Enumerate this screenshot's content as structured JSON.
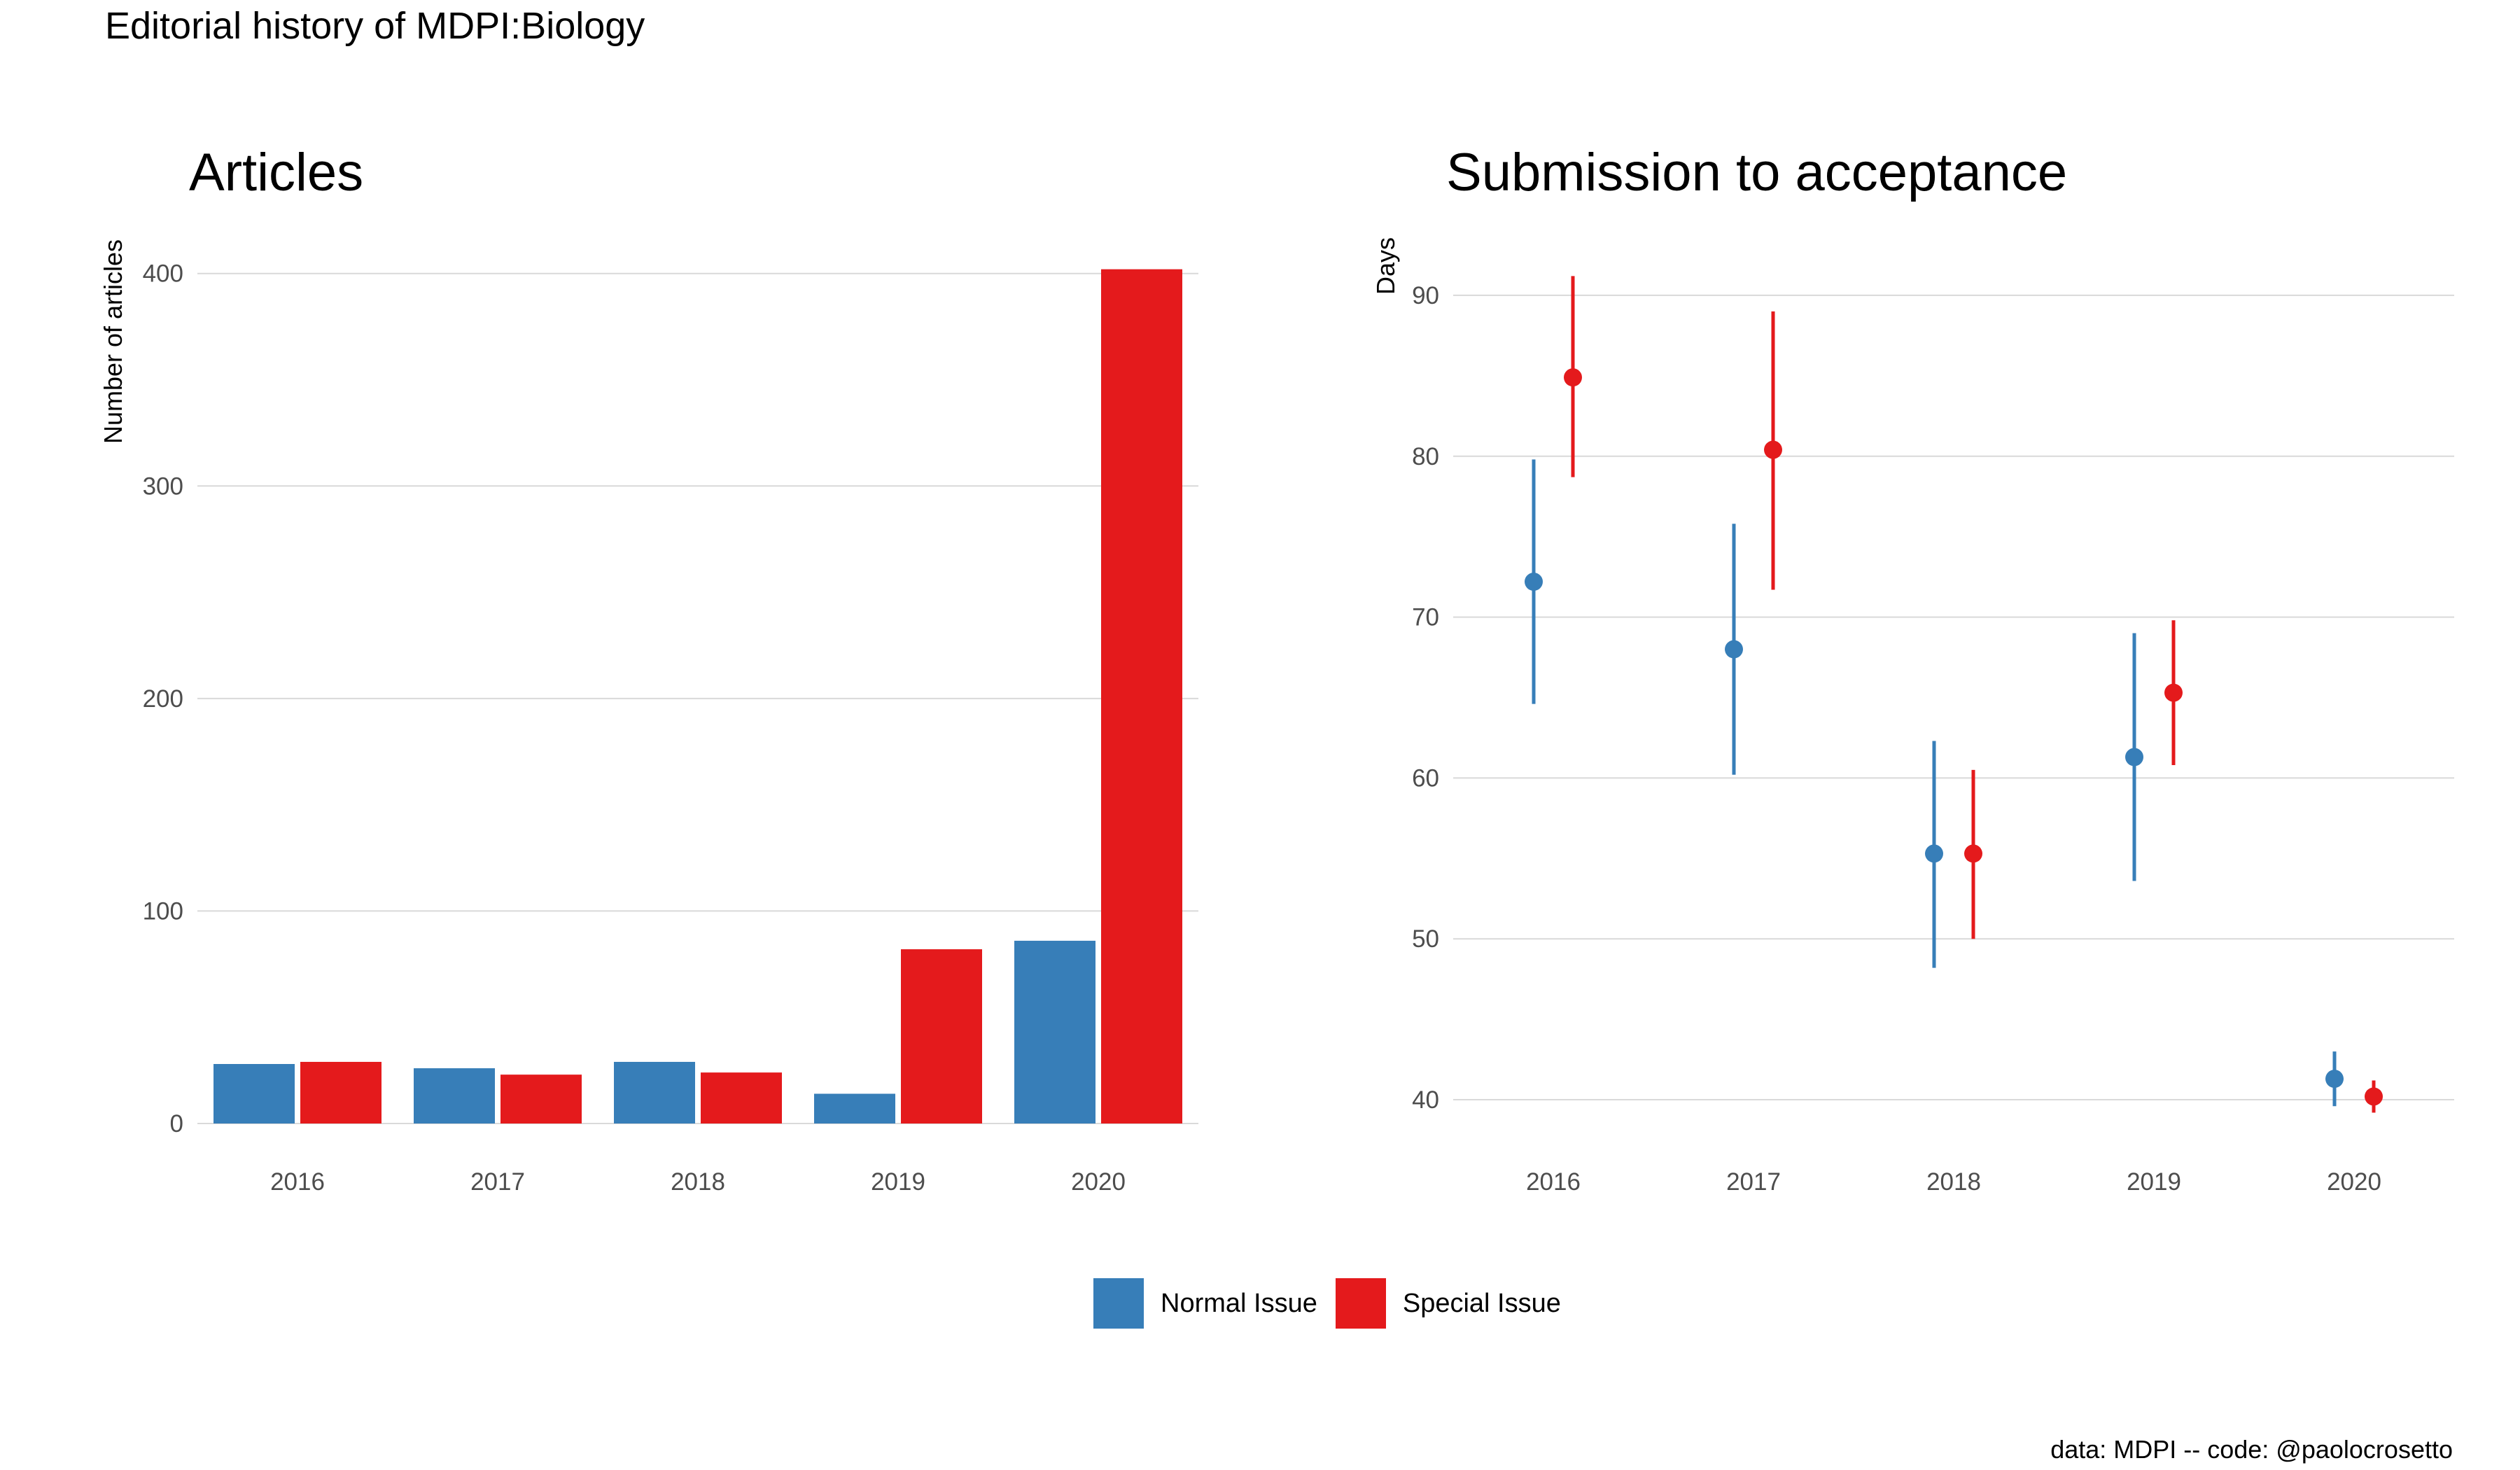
{
  "title": "Editorial history of MDPI:Biology",
  "caption": "data: MDPI -- code: @paolocrosetto",
  "colors": {
    "normal": "#377EB8",
    "special": "#E41A1C",
    "grid": "#D9D9D9",
    "tick_text": "#4D4D4D"
  },
  "legend": [
    {
      "label": "Normal Issue",
      "color": "#377EB8"
    },
    {
      "label": "Special Issue",
      "color": "#E41A1C"
    }
  ],
  "chart_data": [
    {
      "type": "bar",
      "title": "Articles",
      "xlabel": "",
      "ylabel": "Number of articles",
      "categories": [
        "2016",
        "2017",
        "2018",
        "2019",
        "2020"
      ],
      "ylim": [
        0,
        420
      ],
      "yticks": [
        0,
        100,
        200,
        300,
        400
      ],
      "series": [
        {
          "name": "Normal Issue",
          "values": [
            28,
            26,
            29,
            14,
            86
          ]
        },
        {
          "name": "Special Issue",
          "values": [
            29,
            23,
            24,
            82,
            402
          ]
        }
      ]
    },
    {
      "type": "scatter",
      "title": "Submission to acceptance",
      "xlabel": "",
      "ylabel": "Days",
      "categories": [
        "2016",
        "2017",
        "2018",
        "2019",
        "2020"
      ],
      "ylim": [
        37,
        94
      ],
      "yticks": [
        40,
        50,
        60,
        70,
        80,
        90
      ],
      "series": [
        {
          "name": "Normal Issue",
          "values": [
            72.2,
            68.0,
            55.3,
            61.3,
            41.3
          ],
          "lower": [
            64.6,
            60.2,
            48.2,
            53.6,
            39.6
          ],
          "upper": [
            79.8,
            75.8,
            62.3,
            69.0,
            43.0
          ]
        },
        {
          "name": "Special Issue",
          "values": [
            84.9,
            80.4,
            55.3,
            65.3,
            40.2
          ],
          "lower": [
            78.7,
            71.7,
            50.0,
            60.8,
            39.2
          ],
          "upper": [
            91.2,
            89.0,
            60.5,
            69.8,
            41.2
          ]
        }
      ]
    }
  ]
}
